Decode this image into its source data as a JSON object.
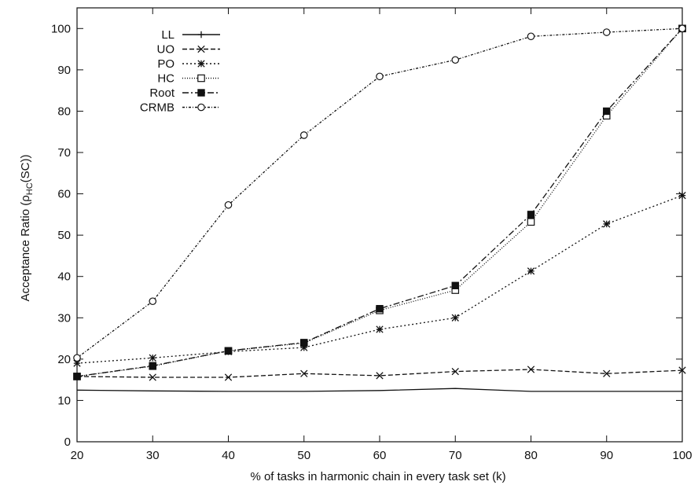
{
  "chart_data": {
    "type": "line",
    "title": "",
    "xlabel": "% of tasks in harmonic chain in every task set (k)",
    "ylabel": "Acceptance Ratio (ρHC(SC))",
    "ylabel_parts": {
      "main": "Acceptance Ratio (ρ",
      "sub": "HC",
      "tail": "(SC))"
    },
    "x": [
      20,
      30,
      40,
      50,
      60,
      70,
      80,
      90,
      100
    ],
    "xlim": [
      20,
      100
    ],
    "ylim": [
      0,
      105
    ],
    "xticks": [
      20,
      30,
      40,
      50,
      60,
      70,
      80,
      90,
      100
    ],
    "yticks": [
      0,
      10,
      20,
      30,
      40,
      50,
      60,
      70,
      80,
      90,
      100
    ],
    "grid": false,
    "legend_position": "top-left",
    "series": [
      {
        "name": "LL",
        "marker": "plus",
        "dash": "",
        "values": [
          12.5,
          12.3,
          12.2,
          12.2,
          12.4,
          12.9,
          12.2,
          12.2,
          12.2
        ]
      },
      {
        "name": "UO",
        "marker": "x",
        "dash": "6,3",
        "values": [
          15.8,
          15.6,
          15.6,
          16.5,
          16.0,
          17.0,
          17.5,
          16.5,
          17.3
        ]
      },
      {
        "name": "PO",
        "marker": "star",
        "dash": "2,3",
        "values": [
          19.0,
          20.3,
          21.8,
          22.8,
          27.2,
          30.0,
          41.3,
          52.7,
          59.6
        ]
      },
      {
        "name": "HC",
        "marker": "open-square",
        "dash": "1,2",
        "values": [
          15.8,
          18.3,
          22.0,
          23.9,
          31.8,
          36.7,
          53.2,
          78.9,
          100.0
        ]
      },
      {
        "name": "Root",
        "marker": "filled-square",
        "dash": "8,3,2,3",
        "values": [
          15.8,
          18.4,
          22.0,
          24.0,
          32.2,
          37.8,
          55.0,
          80.0,
          100.0
        ]
      },
      {
        "name": "CRMB",
        "marker": "circle",
        "dash": "3,2,1,2",
        "values": [
          20.3,
          34.0,
          57.3,
          74.2,
          88.4,
          92.4,
          98.1,
          99.1,
          100.0
        ]
      }
    ]
  }
}
